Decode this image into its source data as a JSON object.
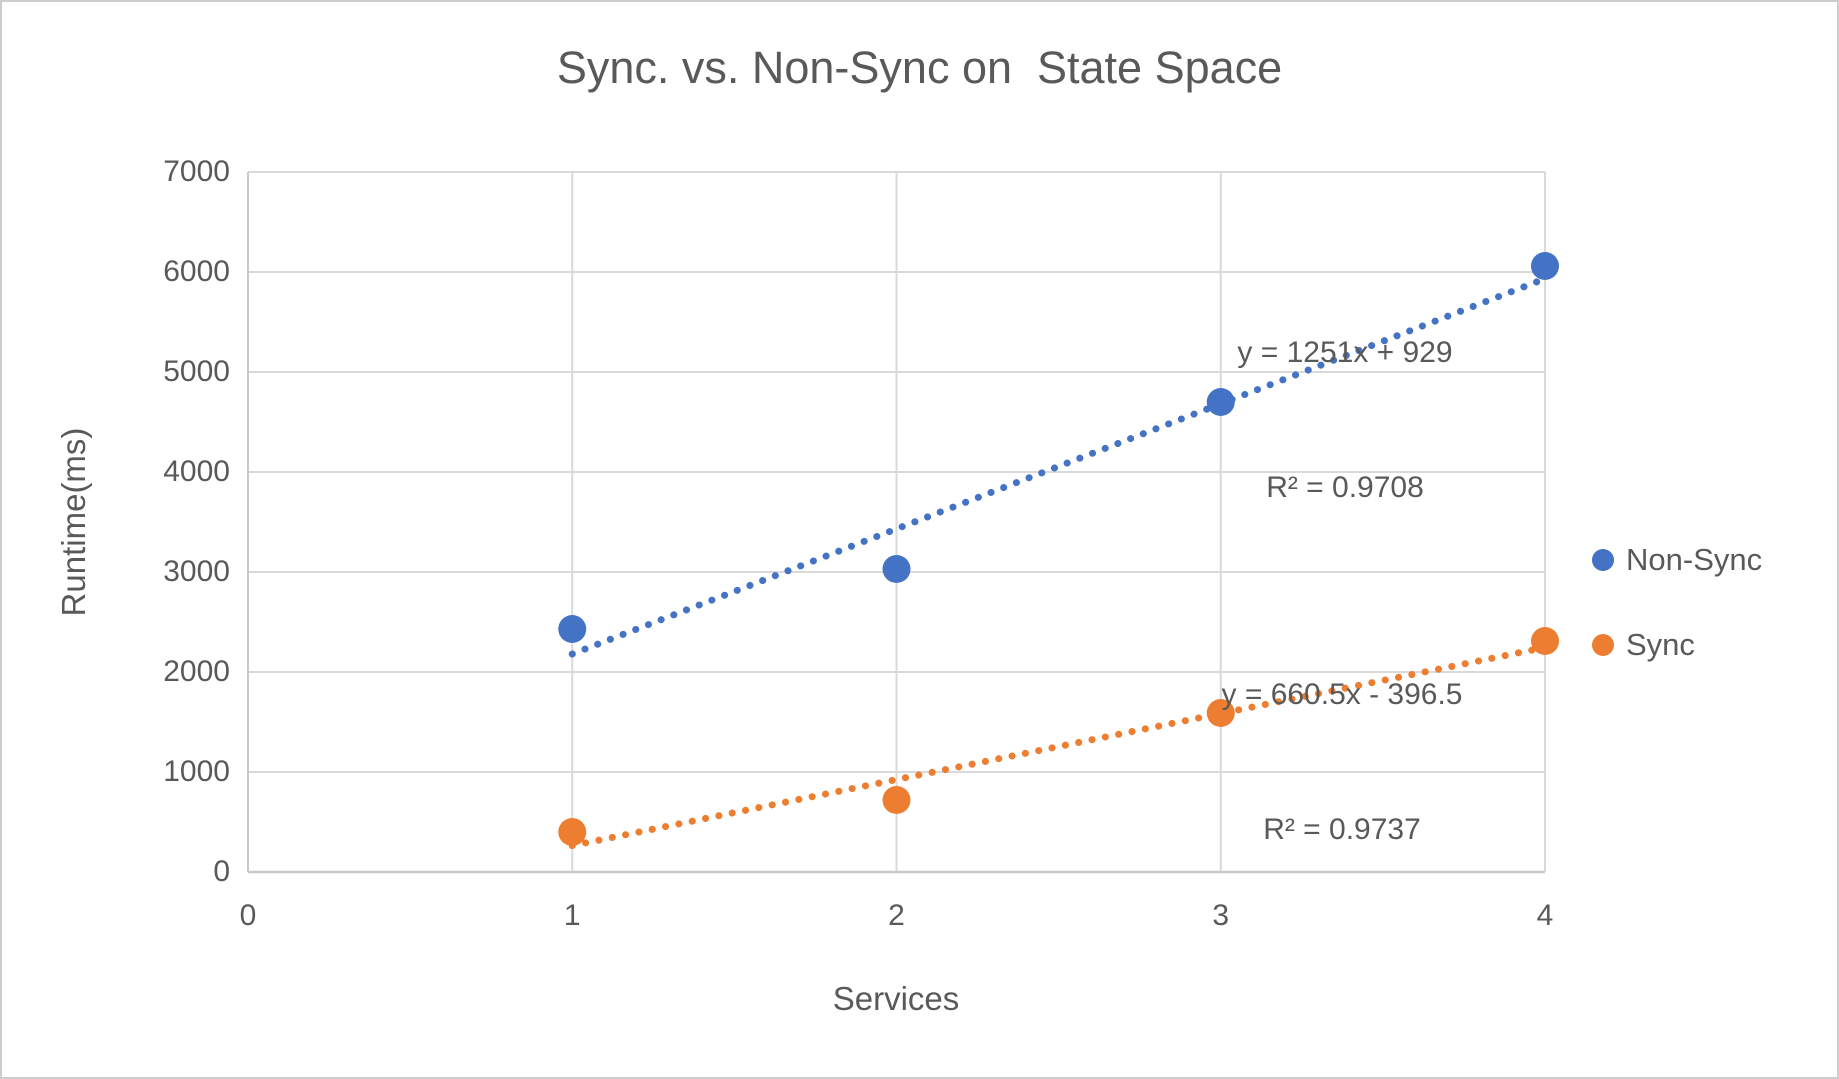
{
  "chart_data": {
    "type": "scatter",
    "title": "Sync. vs. Non-Sync on  State Space",
    "xlabel": "Services",
    "ylabel": "Runtime(ms)",
    "xlim": [
      0,
      4
    ],
    "ylim": [
      0,
      7000
    ],
    "xticks": [
      0,
      1,
      2,
      3,
      4
    ],
    "yticks": [
      0,
      1000,
      2000,
      3000,
      4000,
      5000,
      6000,
      7000
    ],
    "grid": true,
    "legend_position": "right",
    "x": [
      1,
      2,
      3,
      4
    ],
    "series": [
      {
        "name": "Non-Sync",
        "color": "#4472C4",
        "values": [
          2430,
          3030,
          4700,
          6060
        ],
        "trendline": {
          "style": "dotted",
          "slope": 1251,
          "intercept": 929,
          "x_range": [
            1,
            4
          ],
          "equation": "y = 1251x + 929",
          "r_squared_label": "R² = 0.9708"
        }
      },
      {
        "name": "Sync",
        "color": "#ED7D31",
        "values": [
          400,
          720,
          1590,
          2310
        ],
        "trendline": {
          "style": "dotted",
          "slope": 660.5,
          "intercept": -396.5,
          "x_range": [
            1,
            4
          ],
          "equation": "y = 660.5x - 396.5",
          "r_squared_label": "R² = 0.9737"
        }
      }
    ],
    "colors": {
      "gridline": "#D9D9D9",
      "axis_line": "#C9C9C9",
      "text": "#595959"
    }
  }
}
